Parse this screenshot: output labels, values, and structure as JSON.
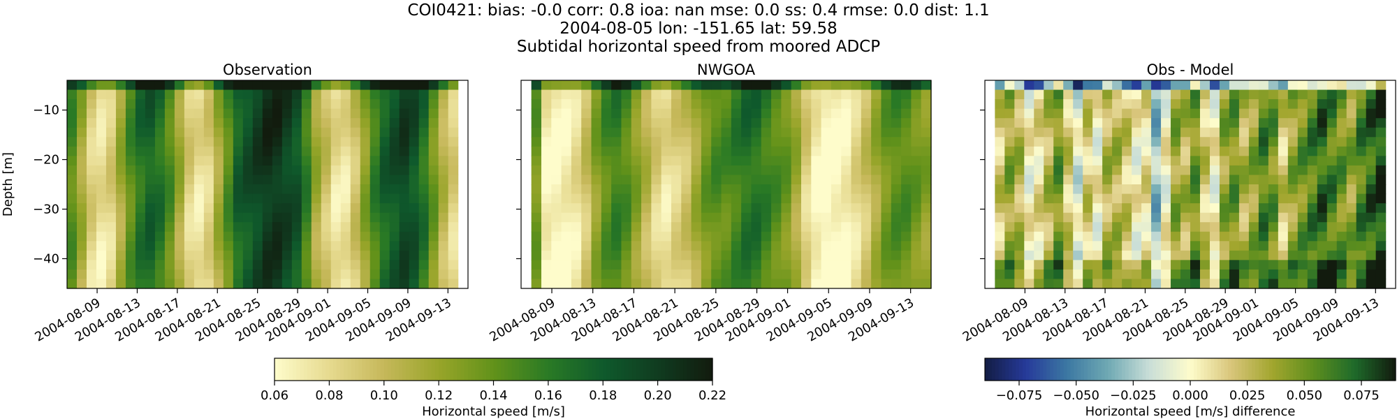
{
  "figure": {
    "suptitle_lines": [
      "COI0421: bias: -0.0  corr: 0.8  ioa: nan  mse: 0.0  ss: 0.4  rmse: 0.0  dist: 1.1",
      "2004-08-05 lon: -151.65 lat: 59.58",
      "Subtidal horizontal speed from moored ADCP"
    ],
    "colors": {
      "speed_cmap": [
        "#fefccb",
        "#e6da8f",
        "#c6b85a",
        "#98a52a",
        "#62921a",
        "#2a7a25",
        "#0f5a2c",
        "#103c20",
        "#121b0e"
      ],
      "diff_cmap": [
        "#131d44",
        "#263a9a",
        "#3c78a2",
        "#6fa9b3",
        "#c9ded7",
        "#fefccb",
        "#d8c57a",
        "#a2a62e",
        "#5d8e1e",
        "#1e6a2a",
        "#121b0e"
      ]
    }
  },
  "chart_data": [
    {
      "type": "heatmap",
      "title": "Observation",
      "ylabel": "Depth [m]",
      "xlabel": "",
      "ylim": [
        -46,
        -4
      ],
      "yticks": [
        -10,
        -20,
        -30,
        -40
      ],
      "ytick_labels": [
        "−10",
        "−20",
        "−30",
        "−40"
      ],
      "xlim": [
        "2004-08-06",
        "2004-09-15"
      ],
      "xticks": [
        "2004-08-09",
        "2004-08-13",
        "2004-08-17",
        "2004-08-21",
        "2004-08-25",
        "2004-08-29",
        "2004-09-01",
        "2004-09-05",
        "2004-09-09",
        "2004-09-13"
      ],
      "data_start": "2004-08-06",
      "data_end": "2004-09-14",
      "vmin": 0.06,
      "vmax": 0.22,
      "column_profile": [
        0.15,
        0.12,
        0.09,
        0.08,
        0.09,
        0.12,
        0.15,
        0.17,
        0.18,
        0.17,
        0.15,
        0.12,
        0.09,
        0.08,
        0.09,
        0.12,
        0.15,
        0.18,
        0.19,
        0.2,
        0.21,
        0.21,
        0.2,
        0.19,
        0.16,
        0.12,
        0.1,
        0.08,
        0.08,
        0.1,
        0.13,
        0.16,
        0.18,
        0.19,
        0.2,
        0.19,
        0.17,
        0.14,
        0.11,
        0.09
      ],
      "colorbar": "speed"
    },
    {
      "type": "heatmap",
      "title": "NWGOA",
      "ylabel": "",
      "xlabel": "",
      "ylim": [
        -46,
        -4
      ],
      "yticks": [
        -10,
        -20,
        -30,
        -40
      ],
      "ytick_labels": [],
      "xlim": [
        "2004-08-06",
        "2004-09-15"
      ],
      "xticks": [
        "2004-08-09",
        "2004-08-13",
        "2004-08-17",
        "2004-08-21",
        "2004-08-25",
        "2004-08-29",
        "2004-09-01",
        "2004-09-05",
        "2004-09-09",
        "2004-09-13"
      ],
      "data_start": "2004-08-07",
      "data_end": "2004-09-15",
      "vmin": 0.06,
      "vmax": 0.22,
      "column_profile": [
        0.14,
        0.07,
        0.065,
        0.07,
        0.08,
        0.1,
        0.13,
        0.15,
        0.16,
        0.15,
        0.13,
        0.11,
        0.09,
        0.08,
        0.09,
        0.1,
        0.12,
        0.14,
        0.15,
        0.15,
        0.16,
        0.17,
        0.17,
        0.16,
        0.15,
        0.14,
        0.12,
        0.09,
        0.07,
        0.06,
        0.065,
        0.07,
        0.085,
        0.1,
        0.12,
        0.14,
        0.15,
        0.15,
        0.14,
        0.13
      ],
      "colorbar": "speed"
    },
    {
      "type": "heatmap",
      "title": "Obs - Model",
      "ylabel": "",
      "xlabel": "",
      "ylim": [
        -46,
        -4
      ],
      "yticks": [
        -10,
        -20,
        -30,
        -40
      ],
      "ytick_labels": [],
      "xlim": [
        "2004-08-05",
        "2004-09-15"
      ],
      "xticks": [
        "2004-08-09",
        "2004-08-13",
        "2004-08-17",
        "2004-08-21",
        "2004-08-25",
        "2004-08-29",
        "2004-09-01",
        "2004-09-05",
        "2004-09-09",
        "2004-09-13"
      ],
      "data_start": "2004-08-06",
      "data_end": "2004-09-14",
      "vmin": -0.09,
      "vmax": 0.09,
      "column_profile": [
        0.02,
        0.04,
        0.03,
        0.0,
        0.01,
        0.03,
        0.05,
        0.02,
        -0.01,
        0.02,
        0.0,
        0.03,
        0.03,
        0.02,
        0.0,
        0.01,
        -0.03,
        0.0,
        0.04,
        0.03,
        0.05,
        0.02,
        0.0,
        0.04,
        0.05,
        0.03,
        0.04,
        0.06,
        0.05,
        0.02,
        0.04,
        0.05,
        0.06,
        0.07,
        0.06,
        0.05,
        0.04,
        0.06,
        0.07,
        0.08
      ],
      "colorbar": "diff"
    }
  ],
  "colorbars": {
    "speed": {
      "label": "Horizontal speed [m/s]",
      "vmin": 0.06,
      "vmax": 0.22,
      "ticks": [
        0.06,
        0.08,
        0.1,
        0.12,
        0.14,
        0.16,
        0.18,
        0.2,
        0.22
      ],
      "tick_labels": [
        "0.06",
        "0.08",
        "0.10",
        "0.12",
        "0.14",
        "0.16",
        "0.18",
        "0.20",
        "0.22"
      ]
    },
    "diff": {
      "label": "Horizontal speed [m/s] difference",
      "vmin": -0.09,
      "vmax": 0.09,
      "ticks": [
        -0.075,
        -0.05,
        -0.025,
        0.0,
        0.025,
        0.05,
        0.075
      ],
      "tick_labels": [
        "−0.075",
        "−0.050",
        "−0.025",
        "0.000",
        "0.025",
        "0.050",
        "0.075"
      ]
    }
  }
}
